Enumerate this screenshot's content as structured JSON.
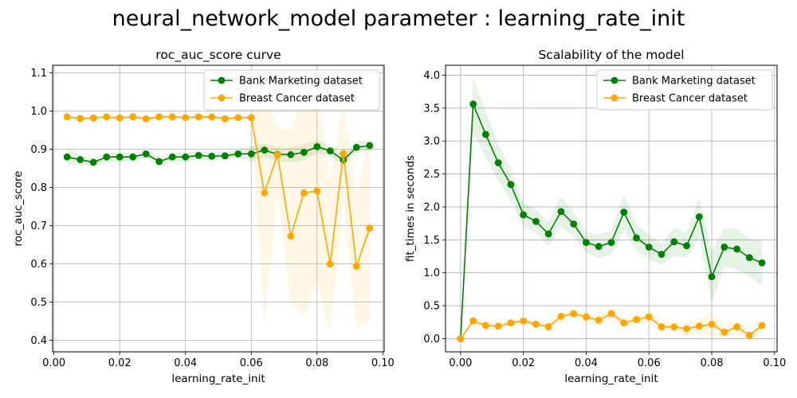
{
  "figure": {
    "suptitle": "neural_network_model parameter : learning_rate_init"
  },
  "colors": {
    "bank": "#008000",
    "breast": "#ffa500",
    "grid": "#b0b0b0"
  },
  "chart_data": [
    {
      "type": "line",
      "title": "roc_auc_score curve",
      "xlabel": "learning_rate_init",
      "ylabel": "roc_auc_score",
      "xlim": [
        -0.0004,
        0.1004
      ],
      "ylim": [
        0.37,
        1.12
      ],
      "xticks": [
        0.0,
        0.02,
        0.04,
        0.06,
        0.08,
        0.1
      ],
      "xtick_labels": [
        "0.00",
        "0.02",
        "0.04",
        "0.06",
        "0.08",
        "0.10"
      ],
      "yticks": [
        0.4,
        0.5,
        0.6,
        0.7,
        0.8,
        0.9,
        1.0,
        1.1
      ],
      "ytick_labels": [
        "0.4",
        "0.5",
        "0.6",
        "0.7",
        "0.8",
        "0.9",
        "1.0",
        "1.1"
      ],
      "grid": true,
      "legend_position": "top-right",
      "x": [
        0.004,
        0.008,
        0.012,
        0.016,
        0.02,
        0.024,
        0.028,
        0.032,
        0.036,
        0.04,
        0.044,
        0.048,
        0.052,
        0.056,
        0.06,
        0.064,
        0.068,
        0.072,
        0.076,
        0.08,
        0.084,
        0.088,
        0.092,
        0.096
      ],
      "series": [
        {
          "name": "Bank Marketing dataset",
          "color": "#008000",
          "values": [
            0.88,
            0.873,
            0.866,
            0.88,
            0.88,
            0.88,
            0.888,
            0.868,
            0.88,
            0.88,
            0.884,
            0.882,
            0.883,
            0.888,
            0.888,
            0.898,
            0.887,
            0.886,
            0.892,
            0.907,
            0.896,
            0.872,
            0.905,
            0.91
          ],
          "lower": [
            0.857,
            0.86,
            0.855,
            0.868,
            0.868,
            0.868,
            0.878,
            0.858,
            0.868,
            0.868,
            0.873,
            0.87,
            0.872,
            0.877,
            0.866,
            0.88,
            0.868,
            0.867,
            0.87,
            0.89,
            0.883,
            0.858,
            0.892,
            0.895
          ],
          "upper": [
            0.903,
            0.886,
            0.877,
            0.892,
            0.892,
            0.892,
            0.898,
            0.878,
            0.892,
            0.892,
            0.895,
            0.894,
            0.894,
            0.899,
            0.91,
            0.916,
            0.906,
            0.905,
            0.914,
            0.924,
            0.909,
            0.886,
            0.918,
            0.925
          ]
        },
        {
          "name": "Breast Cancer dataset",
          "color": "#ffa500",
          "values": [
            0.985,
            0.981,
            0.982,
            0.985,
            0.982,
            0.985,
            0.98,
            0.985,
            0.985,
            0.983,
            0.985,
            0.985,
            0.98,
            0.983,
            0.983,
            0.786,
            0.886,
            0.673,
            0.786,
            0.791,
            0.6,
            0.889,
            0.594,
            0.694
          ],
          "lower": [
            0.978,
            0.975,
            0.976,
            0.979,
            0.976,
            0.979,
            0.974,
            0.979,
            0.979,
            0.977,
            0.979,
            0.979,
            0.974,
            0.977,
            0.977,
            0.44,
            0.78,
            0.5,
            0.46,
            0.56,
            0.42,
            0.76,
            0.43,
            0.45
          ],
          "upper": [
            0.992,
            0.987,
            0.988,
            0.991,
            0.988,
            0.991,
            0.986,
            0.991,
            0.991,
            0.989,
            0.991,
            0.991,
            0.986,
            0.989,
            0.989,
            1.06,
            0.96,
            0.95,
            1.05,
            1.06,
            0.82,
            1.03,
            0.78,
            0.95
          ]
        }
      ]
    },
    {
      "type": "line",
      "title": "Scalability of the model",
      "xlabel": "learning_rate_init",
      "ylabel": "fit_times in seconds",
      "xlim": [
        -0.0048,
        0.1008
      ],
      "ylim": [
        -0.2,
        4.15
      ],
      "xticks": [
        0.0,
        0.02,
        0.04,
        0.06,
        0.08,
        0.1
      ],
      "xtick_labels": [
        "0.00",
        "0.02",
        "0.04",
        "0.06",
        "0.08",
        "0.10"
      ],
      "yticks": [
        0.0,
        0.5,
        1.0,
        1.5,
        2.0,
        2.5,
        3.0,
        3.5,
        4.0
      ],
      "ytick_labels": [
        "0.0",
        "0.5",
        "1.0",
        "1.5",
        "2.0",
        "2.5",
        "3.0",
        "3.5",
        "4.0"
      ],
      "grid": true,
      "legend_position": "top-right",
      "x": [
        0.0,
        0.004,
        0.008,
        0.012,
        0.016,
        0.02,
        0.024,
        0.028,
        0.032,
        0.036,
        0.04,
        0.044,
        0.048,
        0.052,
        0.056,
        0.06,
        0.064,
        0.068,
        0.072,
        0.076,
        0.08,
        0.084,
        0.088,
        0.092,
        0.096
      ],
      "series": [
        {
          "name": "Bank Marketing dataset",
          "color": "#008000",
          "values": [
            0.0,
            3.56,
            3.1,
            2.67,
            2.34,
            1.88,
            1.78,
            1.59,
            1.93,
            1.74,
            1.46,
            1.4,
            1.46,
            1.92,
            1.53,
            1.39,
            1.28,
            1.47,
            1.41,
            1.85,
            0.94,
            1.39,
            1.36,
            1.23,
            1.15
          ],
          "lower": [
            0.0,
            3.15,
            2.75,
            2.4,
            2.1,
            1.7,
            1.6,
            1.4,
            1.7,
            1.55,
            1.3,
            1.22,
            1.28,
            1.65,
            1.33,
            1.2,
            1.12,
            1.25,
            1.22,
            1.55,
            0.55,
            1.1,
            1.05,
            0.95,
            0.8
          ],
          "upper": [
            0.0,
            3.95,
            3.45,
            2.95,
            2.58,
            2.06,
            1.96,
            1.78,
            2.16,
            1.93,
            1.62,
            1.58,
            1.64,
            2.19,
            1.73,
            1.58,
            1.44,
            1.69,
            1.6,
            2.15,
            1.33,
            1.68,
            1.67,
            1.51,
            1.5
          ]
        },
        {
          "name": "Breast Cancer dataset",
          "color": "#ffa500",
          "values": [
            0.0,
            0.27,
            0.2,
            0.19,
            0.24,
            0.27,
            0.22,
            0.18,
            0.34,
            0.38,
            0.33,
            0.28,
            0.38,
            0.24,
            0.29,
            0.33,
            0.18,
            0.18,
            0.15,
            0.19,
            0.22,
            0.1,
            0.18,
            0.05,
            0.2
          ],
          "lower": [
            0.0,
            0.22,
            0.15,
            0.14,
            0.19,
            0.22,
            0.17,
            0.13,
            0.28,
            0.31,
            0.26,
            0.21,
            0.3,
            0.18,
            0.21,
            0.25,
            0.1,
            0.1,
            0.05,
            0.06,
            0.05,
            0.02,
            0.06,
            -0.03,
            0.08
          ],
          "upper": [
            0.0,
            0.32,
            0.25,
            0.24,
            0.29,
            0.32,
            0.27,
            0.23,
            0.4,
            0.45,
            0.4,
            0.35,
            0.46,
            0.3,
            0.37,
            0.41,
            0.26,
            0.26,
            0.25,
            0.32,
            0.39,
            0.18,
            0.3,
            0.13,
            0.32
          ]
        }
      ]
    }
  ]
}
